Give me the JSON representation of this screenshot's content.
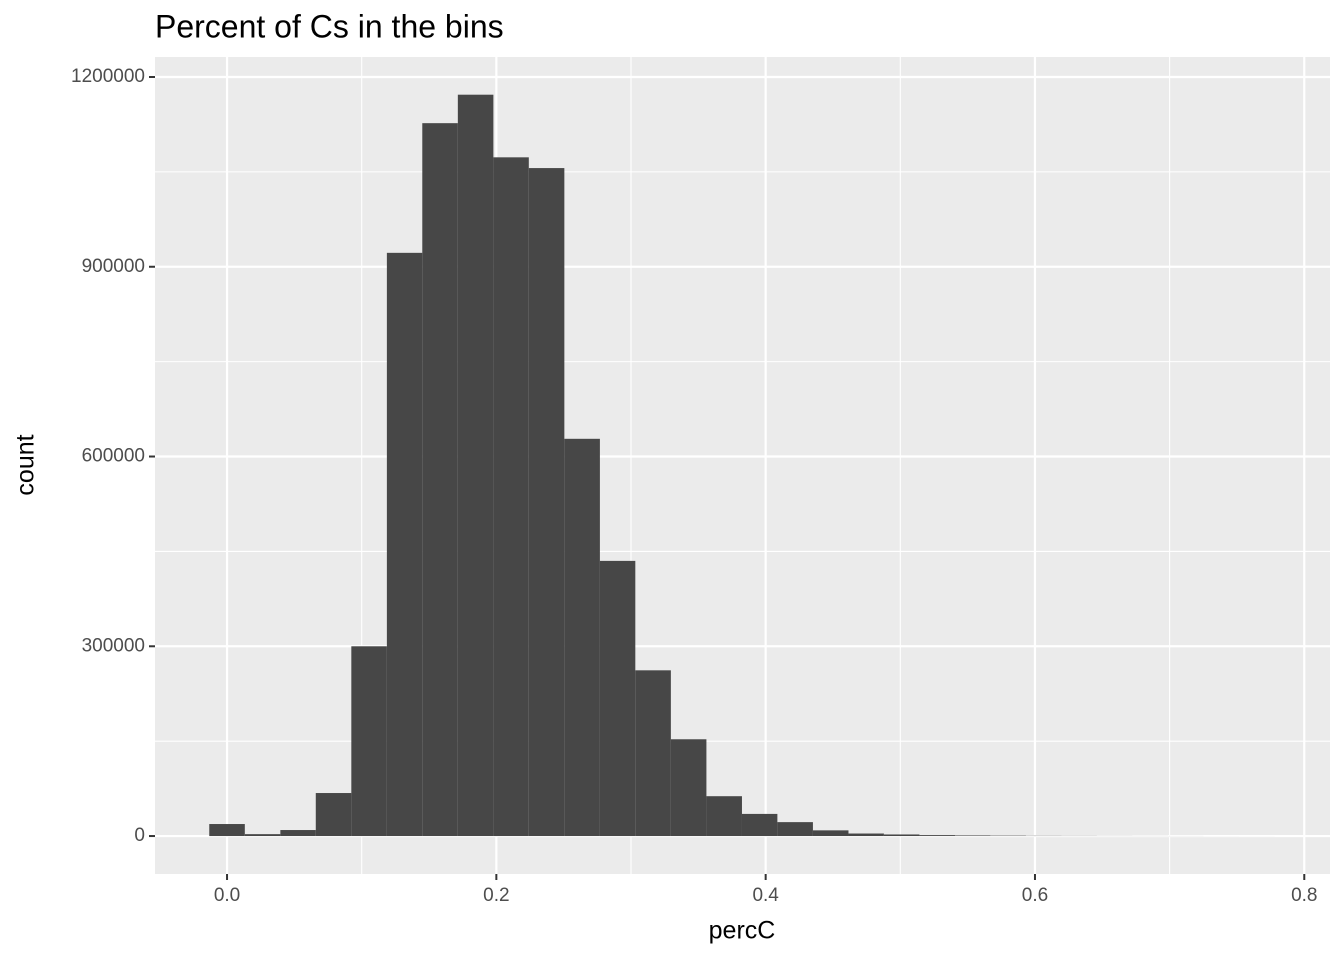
{
  "chart_data": {
    "type": "histogram",
    "title": "Percent of Cs in the bins",
    "x_label": "percC",
    "y_label": "count",
    "bins": [
      -0.0132,
      0.0132,
      0.0396,
      0.0659,
      0.0923,
      0.1187,
      0.145,
      0.1714,
      0.1978,
      0.2241,
      0.2505,
      0.2769,
      0.3032,
      0.3296,
      0.356,
      0.3824,
      0.4087,
      0.4351,
      0.4615,
      0.4878,
      0.5142,
      0.5406,
      0.5669,
      0.5933,
      0.6197,
      0.646,
      0.6724,
      0.6988,
      0.7251,
      0.7515,
      0.7779
    ],
    "values": [
      19000,
      3000,
      9500,
      68000,
      300000,
      922000,
      1127000,
      1172000,
      1073000,
      1056000,
      628000,
      435000,
      262000,
      153000,
      63000,
      35000,
      22000,
      9000,
      4000,
      2500,
      1500,
      1000,
      700,
      400,
      300,
      200,
      150,
      100,
      50,
      30
    ],
    "color": "#474747",
    "xlim": [
      -0.0535,
      0.8191
    ],
    "xticks": [
      {
        "value": 0,
        "label": "0.0"
      },
      0.2,
      0.4,
      0.6,
      0.8
    ],
    "ylim": [
      -60000,
      1231600
    ],
    "yticks": [
      0,
      300000,
      600000,
      900000,
      1200000
    ],
    "grid": true
  }
}
